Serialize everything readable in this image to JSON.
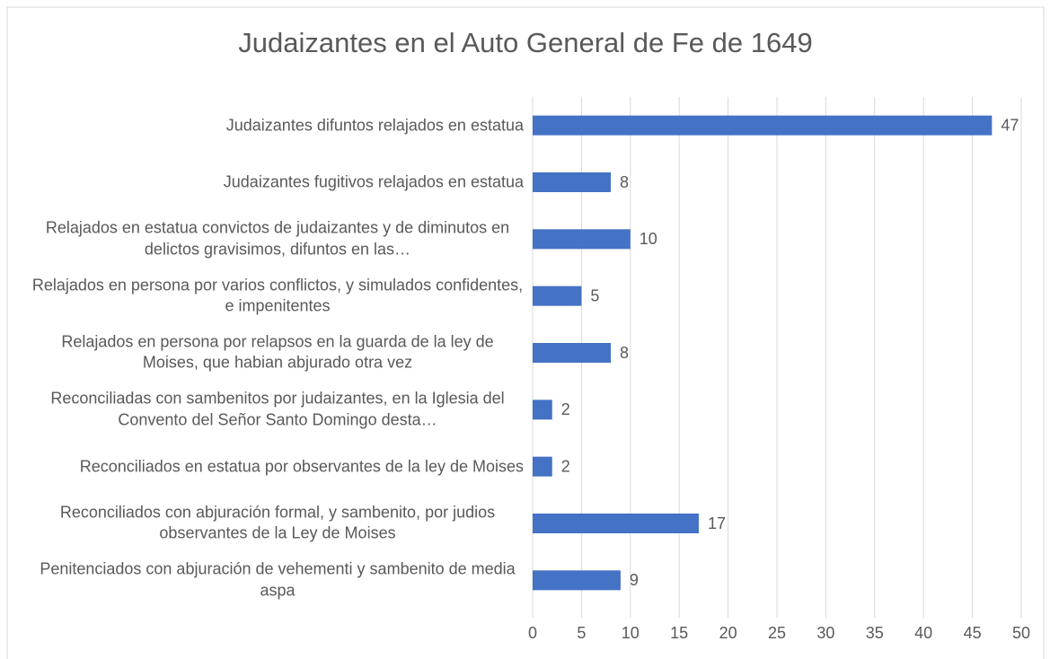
{
  "chart_data": {
    "type": "barh",
    "title": "Judaizantes en el Auto General de Fe de 1649",
    "categories": [
      "Judaizantes difuntos relajados en estatua",
      "Judaizantes fugitivos relajados en estatua",
      "Relajados en estatua convictos de judaizantes y de diminutos en delictos gravisimos, difuntos en las…",
      "Relajados en persona por varios conflictos, y simulados confidentes, e impenitentes",
      "Relajados en persona por relapsos en la guarda de la ley de Moises, que habian abjurado otra vez",
      "Reconciliadas con sambenitos por judaizantes, en la Iglesia del Convento del Señor Santo Domingo desta…",
      "Reconciliados en estatua por observantes de la ley de Moises",
      "Reconciliados con abjuración formal, y sambenito, por judios observantes de la Ley de Moises",
      "Penitenciados con abjuración de vehementi y sambenito de media aspa"
    ],
    "values": [
      47,
      8,
      10,
      5,
      8,
      2,
      2,
      17,
      9
    ],
    "color": "#4472c4",
    "xlim": [
      0,
      50
    ],
    "xticks": [
      0,
      5,
      10,
      15,
      20,
      25,
      30,
      35,
      40,
      45,
      50
    ],
    "grid": true
  }
}
